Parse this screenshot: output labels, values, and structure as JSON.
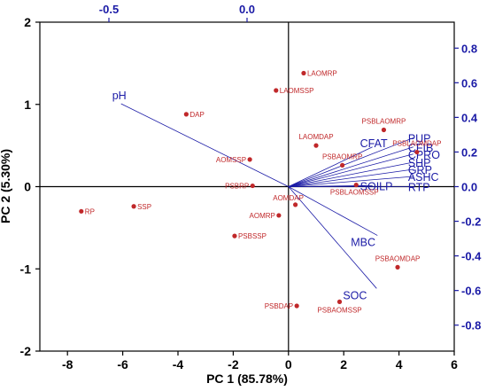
{
  "chart_data": {
    "type": "scatter",
    "title": "",
    "xlabel": "PC 1 (85.78%)",
    "ylabel": "PC 2 (5.30%)",
    "xlim": [
      -9,
      6
    ],
    "ylim": [
      -2,
      2
    ],
    "x_ticks": [
      -8,
      -6,
      -4,
      -2,
      0,
      2,
      4,
      6
    ],
    "y_ticks": [
      -2,
      -1,
      0,
      1,
      2
    ],
    "x2lim": [
      -0.75,
      0.75
    ],
    "y2lim": [
      -0.95,
      0.95
    ],
    "x2_ticks": [
      -0.5,
      0.0
    ],
    "y2_ticks": [
      0.8,
      0.6,
      0.4,
      0.2,
      0.0,
      -0.2,
      -0.4,
      -0.6,
      -0.8
    ],
    "x2_tick_labels": [
      "-0.5",
      "0.0"
    ],
    "y2_tick_labels": [
      "0.8",
      "0.6",
      "0.4",
      "0.2",
      "0.0",
      "-0.2",
      "-0.4",
      "-0.6",
      "-0.8"
    ],
    "grid": false,
    "colors": {
      "scores": "#c0282a",
      "loadings": "#1a1aa6",
      "axes": "#000000"
    },
    "scores": [
      {
        "label": "LAOMRP",
        "x": 0.55,
        "y": 1.38
      },
      {
        "label": "LAOMSSP",
        "x": -0.45,
        "y": 1.17
      },
      {
        "label": "DAP",
        "x": -3.7,
        "y": 0.88
      },
      {
        "label": "PSBLAOMRP",
        "x": 3.45,
        "y": 0.69
      },
      {
        "label": "LAOMDAP",
        "x": 1.0,
        "y": 0.5
      },
      {
        "label": "PSBLAOMDAP",
        "x": 4.65,
        "y": 0.42
      },
      {
        "label": "AOMSSP",
        "x": -1.4,
        "y": 0.33
      },
      {
        "label": "PSBAOMRP",
        "x": 1.95,
        "y": 0.26
      },
      {
        "label": "PSBRP",
        "x": -1.3,
        "y": 0.01
      },
      {
        "label": "PSBLAOMSSP",
        "x": 2.45,
        "y": 0.02
      },
      {
        "label": "AOMDAP",
        "x": 0.25,
        "y": -0.22
      },
      {
        "label": "AOMRP",
        "x": -0.35,
        "y": -0.35
      },
      {
        "label": "SSP",
        "x": -5.6,
        "y": -0.24
      },
      {
        "label": "RP",
        "x": -7.5,
        "y": -0.3
      },
      {
        "label": "PSBSSP",
        "x": -1.95,
        "y": -0.6
      },
      {
        "label": "PSBAOMDAP",
        "x": 3.95,
        "y": -0.98
      },
      {
        "label": "PSBDAP",
        "x": 0.3,
        "y": -1.45
      },
      {
        "label": "PSBAOMSSP",
        "x": 1.85,
        "y": -1.4
      }
    ],
    "loadings": [
      {
        "label": "pH",
        "x": -0.456,
        "y": 0.479
      },
      {
        "label": "PUP",
        "x": 0.602,
        "y": 0.282
      },
      {
        "label": "CFIB",
        "x": 0.602,
        "y": 0.229
      },
      {
        "label": "CFAT",
        "x": 0.454,
        "y": 0.229
      },
      {
        "label": "CPRO",
        "x": 0.602,
        "y": 0.188
      },
      {
        "label": "SHP",
        "x": 0.602,
        "y": 0.141
      },
      {
        "label": "GRP",
        "x": 0.602,
        "y": 0.1
      },
      {
        "label": "ASHC",
        "x": 0.602,
        "y": 0.059
      },
      {
        "label": "SOILP",
        "x": 0.454,
        "y": 0.006
      },
      {
        "label": "RTP",
        "x": 0.602,
        "y": 0.0
      },
      {
        "label": "MBC",
        "x": 0.472,
        "y": -0.282
      },
      {
        "label": "SOC",
        "x": 0.469,
        "y": -0.588
      }
    ]
  }
}
